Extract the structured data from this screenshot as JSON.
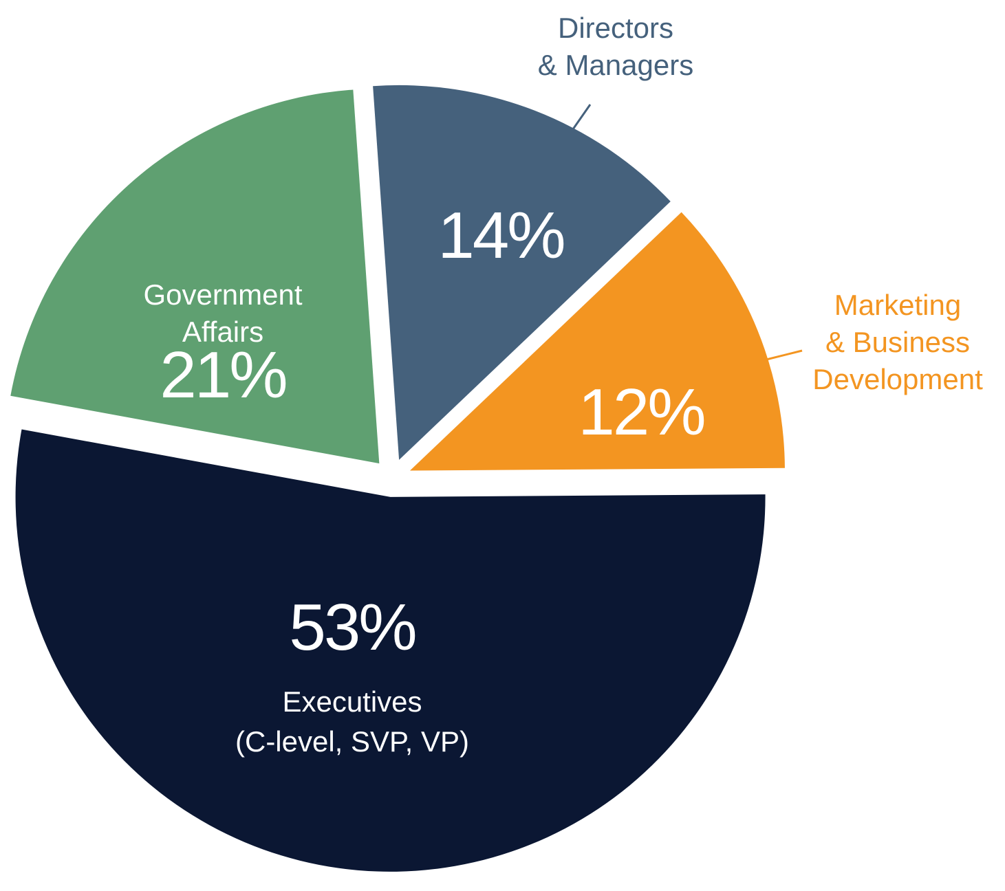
{
  "chart_data": {
    "type": "pie",
    "slices": [
      {
        "label_lines": [
          "Directors",
          "& Managers"
        ],
        "value": 14,
        "value_label": "14%",
        "color": "#45617c",
        "label_color": "#45617c",
        "label_placement": "outside"
      },
      {
        "label_lines": [
          "Marketing",
          "& Business",
          "Development"
        ],
        "value": 12,
        "value_label": "12%",
        "color": "#f39521",
        "label_color": "#f39521",
        "label_placement": "outside"
      },
      {
        "label_lines": [
          "Executives",
          "(C-level, SVP, VP)"
        ],
        "value": 53,
        "value_label": "53%",
        "color": "#0b1733",
        "label_color": "#ffffff",
        "label_placement": "inside"
      },
      {
        "label_lines": [
          "Government",
          "Affairs"
        ],
        "value": 21,
        "value_label": "21%",
        "color": "#5fa071",
        "label_color": "#ffffff",
        "label_placement": "inside"
      }
    ],
    "legend": "none",
    "title": ""
  }
}
